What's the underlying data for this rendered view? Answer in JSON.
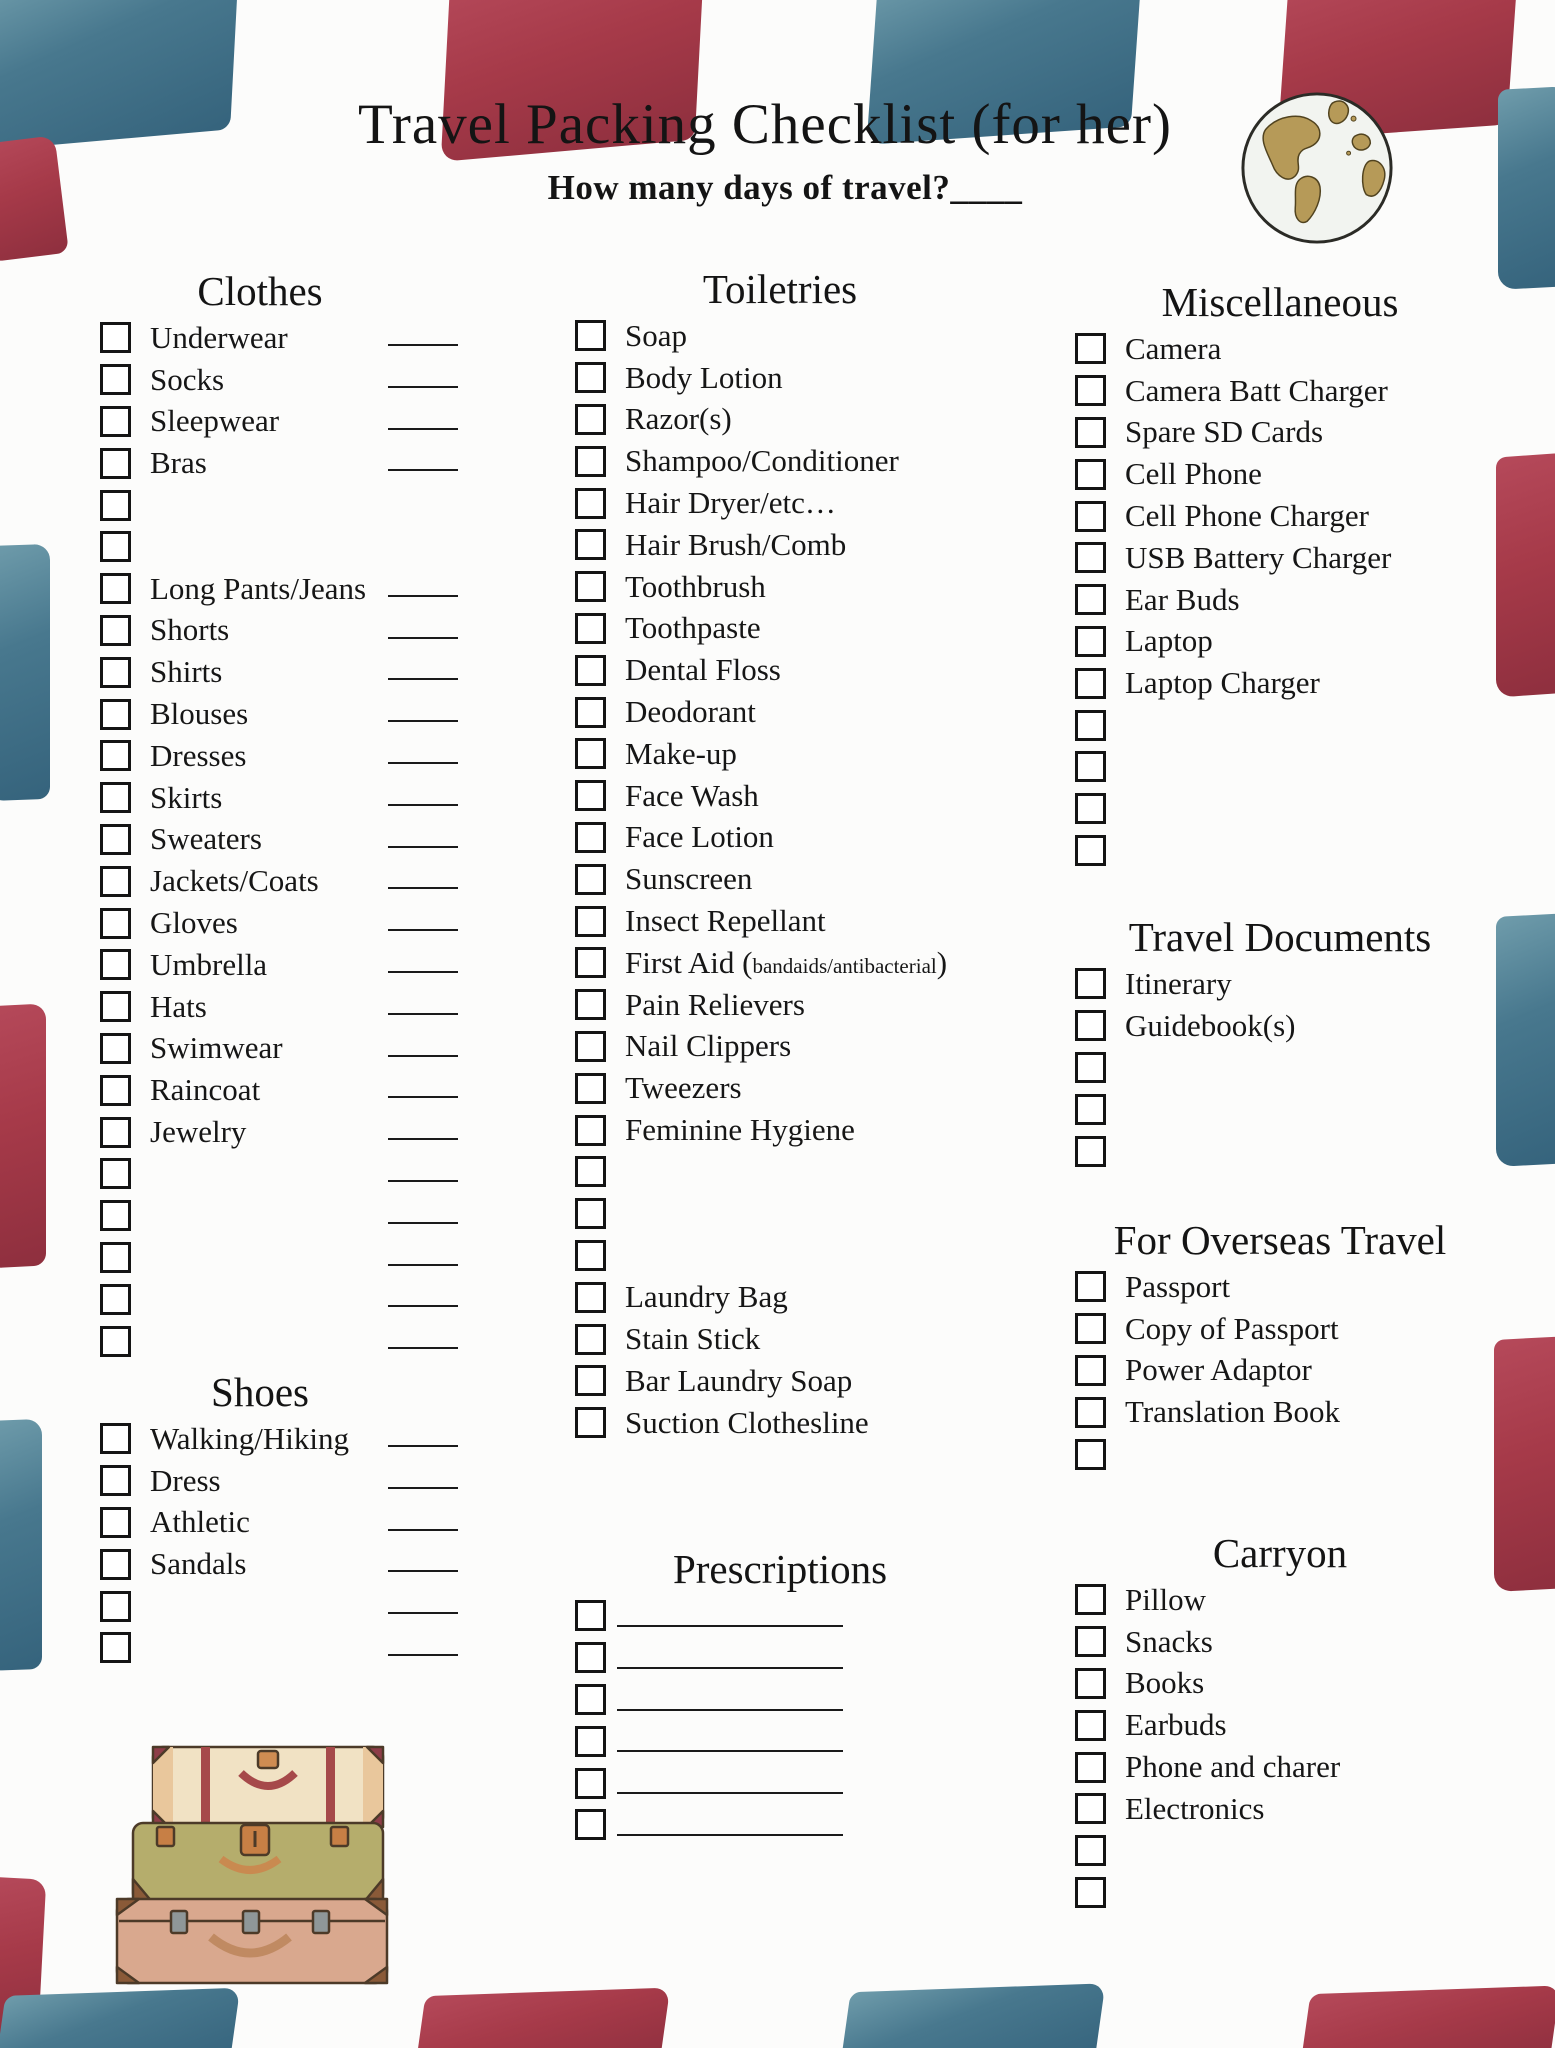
{
  "title": "Travel Packing Checklist (for her)",
  "subtitle": "How many days of travel?____",
  "colors": {
    "red": "#a63a49",
    "red_light": "#b5495a",
    "red_dark": "#8e2f3e",
    "blue": "#48788e",
    "blue_light": "#6f9cab",
    "blue_dark": "#35637c",
    "ink": "#141414",
    "paper": "#fcfcfb"
  },
  "icons": {
    "globe": "globe-illustration",
    "suitcases": "suitcases-illustration"
  },
  "sections": {
    "clothes": {
      "heading": "Clothes",
      "items": [
        {
          "label": "Underwear",
          "line": true
        },
        {
          "label": "Socks",
          "line": true
        },
        {
          "label": "Sleepwear",
          "line": true
        },
        {
          "label": "Bras",
          "line": true
        },
        {
          "label": "",
          "line": false
        },
        {
          "label": "",
          "line": false
        },
        {
          "label": "Long Pants/Jeans",
          "line": true
        },
        {
          "label": "Shorts",
          "line": true
        },
        {
          "label": "Shirts",
          "line": true
        },
        {
          "label": "Blouses",
          "line": true
        },
        {
          "label": "Dresses",
          "line": true
        },
        {
          "label": "Skirts",
          "line": true
        },
        {
          "label": "Sweaters",
          "line": true
        },
        {
          "label": "Jackets/Coats",
          "line": true
        },
        {
          "label": "Gloves",
          "line": true
        },
        {
          "label": "Umbrella",
          "line": true
        },
        {
          "label": "Hats",
          "line": true
        },
        {
          "label": "Swimwear",
          "line": true
        },
        {
          "label": "Raincoat",
          "line": true
        },
        {
          "label": "Jewelry",
          "line": true
        },
        {
          "label": "",
          "line": true
        },
        {
          "label": "",
          "line": true
        },
        {
          "label": "",
          "line": true
        },
        {
          "label": "",
          "line": true
        },
        {
          "label": "",
          "line": true
        }
      ]
    },
    "shoes": {
      "heading": "Shoes",
      "items": [
        {
          "label": "Walking/Hiking",
          "line": true
        },
        {
          "label": "Dress",
          "line": true
        },
        {
          "label": "Athletic",
          "line": true
        },
        {
          "label": "Sandals",
          "line": true
        },
        {
          "label": "",
          "line": true
        },
        {
          "label": "",
          "line": true
        }
      ]
    },
    "toiletries": {
      "heading": "Toiletries",
      "items": [
        {
          "label": "Soap"
        },
        {
          "label": "Body Lotion"
        },
        {
          "label": "Razor(s)"
        },
        {
          "label": "Shampoo/Conditioner"
        },
        {
          "label": "Hair Dryer/etc…"
        },
        {
          "label": "Hair Brush/Comb"
        },
        {
          "label": "Toothbrush"
        },
        {
          "label": "Toothpaste"
        },
        {
          "label": "Dental Floss"
        },
        {
          "label": "Deodorant"
        },
        {
          "label": "Make-up"
        },
        {
          "label": "Face Wash"
        },
        {
          "label": "Face Lotion"
        },
        {
          "label": "Sunscreen"
        },
        {
          "label": "Insect Repellant"
        },
        {
          "label": "First Aid (",
          "small": "bandaids/antibacterial",
          "post": ")"
        },
        {
          "label": "Pain Relievers"
        },
        {
          "label": "Nail Clippers"
        },
        {
          "label": "Tweezers"
        },
        {
          "label": "Feminine Hygiene"
        },
        {
          "label": ""
        },
        {
          "label": ""
        },
        {
          "label": ""
        },
        {
          "label": "Laundry Bag"
        },
        {
          "label": "Stain Stick"
        },
        {
          "label": " Bar Laundry Soap"
        },
        {
          "label": "Suction Clothesline"
        }
      ]
    },
    "prescriptions": {
      "heading": "Prescriptions",
      "line_style": "rx",
      "items": [
        {
          "label": "",
          "line": true
        },
        {
          "label": "",
          "line": true
        },
        {
          "label": "",
          "line": true
        },
        {
          "label": "",
          "line": true
        },
        {
          "label": "",
          "line": true
        },
        {
          "label": "",
          "line": true
        }
      ]
    },
    "misc": {
      "heading": "Miscellaneous",
      "items": [
        {
          "label": "Camera"
        },
        {
          "label": "Camera Batt Charger"
        },
        {
          "label": "Spare SD Cards"
        },
        {
          "label": "Cell Phone"
        },
        {
          "label": "Cell Phone Charger"
        },
        {
          "label": "USB Battery Charger"
        },
        {
          "label": "Ear Buds"
        },
        {
          "label": "Laptop"
        },
        {
          "label": "Laptop Charger"
        },
        {
          "label": ""
        },
        {
          "label": ""
        },
        {
          "label": ""
        },
        {
          "label": ""
        }
      ]
    },
    "travel_documents": {
      "heading": "Travel Documents",
      "items": [
        {
          "label": "Itinerary"
        },
        {
          "label": "Guidebook(s)"
        },
        {
          "label": ""
        },
        {
          "label": ""
        },
        {
          "label": ""
        }
      ]
    },
    "overseas": {
      "heading": "For Overseas Travel",
      "items": [
        {
          "label": "Passport"
        },
        {
          "label": "Copy of Passport"
        },
        {
          "label": "Power Adaptor"
        },
        {
          "label": "Translation Book"
        },
        {
          "label": ""
        }
      ]
    },
    "carryon": {
      "heading": "Carryon",
      "items": [
        {
          "label": "Pillow"
        },
        {
          "label": "Snacks"
        },
        {
          "label": "Books"
        },
        {
          "label": "Earbuds"
        },
        {
          "label": "Phone and charer"
        },
        {
          "label": "Electronics"
        },
        {
          "label": ""
        },
        {
          "label": ""
        }
      ]
    }
  }
}
